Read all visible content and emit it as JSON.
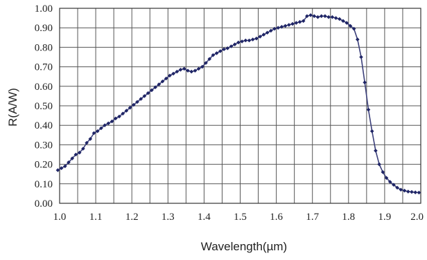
{
  "chart_data": {
    "type": "line",
    "xlabel": "Wavelength(µm)",
    "ylabel": "R(A/W)",
    "xlim": [
      1.0,
      2.0
    ],
    "ylim": [
      0.0,
      1.0
    ],
    "grid": true,
    "x_ticks": [
      "1.0",
      "1.1",
      "1.2",
      "1.3",
      "1.4",
      "1.5",
      "1.6",
      "1.7",
      "1.8",
      "1.9",
      "2.0"
    ],
    "y_ticks": [
      "0.00",
      "0.10",
      "0.20",
      "0.30",
      "0.40",
      "0.50",
      "0.60",
      "0.70",
      "0.80",
      "0.90",
      "1.00"
    ],
    "series": [
      {
        "color": "#1f2566",
        "points": [
          [
            0.995,
            0.17
          ],
          [
            1.005,
            0.18
          ],
          [
            1.015,
            0.19
          ],
          [
            1.025,
            0.21
          ],
          [
            1.035,
            0.23
          ],
          [
            1.045,
            0.25
          ],
          [
            1.055,
            0.26
          ],
          [
            1.065,
            0.28
          ],
          [
            1.075,
            0.31
          ],
          [
            1.085,
            0.33
          ],
          [
            1.095,
            0.36
          ],
          [
            1.105,
            0.37
          ],
          [
            1.115,
            0.385
          ],
          [
            1.125,
            0.4
          ],
          [
            1.135,
            0.41
          ],
          [
            1.145,
            0.42
          ],
          [
            1.155,
            0.435
          ],
          [
            1.165,
            0.445
          ],
          [
            1.175,
            0.46
          ],
          [
            1.185,
            0.475
          ],
          [
            1.195,
            0.49
          ],
          [
            1.205,
            0.505
          ],
          [
            1.215,
            0.52
          ],
          [
            1.225,
            0.535
          ],
          [
            1.235,
            0.55
          ],
          [
            1.245,
            0.565
          ],
          [
            1.255,
            0.58
          ],
          [
            1.265,
            0.595
          ],
          [
            1.275,
            0.61
          ],
          [
            1.285,
            0.625
          ],
          [
            1.295,
            0.64
          ],
          [
            1.305,
            0.655
          ],
          [
            1.315,
            0.665
          ],
          [
            1.325,
            0.675
          ],
          [
            1.335,
            0.685
          ],
          [
            1.345,
            0.69
          ],
          [
            1.355,
            0.68
          ],
          [
            1.365,
            0.675
          ],
          [
            1.375,
            0.68
          ],
          [
            1.385,
            0.69
          ],
          [
            1.395,
            0.7
          ],
          [
            1.405,
            0.72
          ],
          [
            1.415,
            0.74
          ],
          [
            1.425,
            0.76
          ],
          [
            1.435,
            0.77
          ],
          [
            1.445,
            0.78
          ],
          [
            1.455,
            0.79
          ],
          [
            1.465,
            0.795
          ],
          [
            1.475,
            0.805
          ],
          [
            1.485,
            0.815
          ],
          [
            1.495,
            0.825
          ],
          [
            1.505,
            0.83
          ],
          [
            1.515,
            0.835
          ],
          [
            1.525,
            0.835
          ],
          [
            1.535,
            0.84
          ],
          [
            1.545,
            0.845
          ],
          [
            1.555,
            0.855
          ],
          [
            1.565,
            0.865
          ],
          [
            1.575,
            0.875
          ],
          [
            1.585,
            0.885
          ],
          [
            1.595,
            0.895
          ],
          [
            1.605,
            0.9
          ],
          [
            1.615,
            0.905
          ],
          [
            1.625,
            0.91
          ],
          [
            1.635,
            0.915
          ],
          [
            1.645,
            0.92
          ],
          [
            1.655,
            0.925
          ],
          [
            1.665,
            0.93
          ],
          [
            1.675,
            0.935
          ],
          [
            1.685,
            0.96
          ],
          [
            1.695,
            0.965
          ],
          [
            1.705,
            0.96
          ],
          [
            1.715,
            0.955
          ],
          [
            1.725,
            0.96
          ],
          [
            1.735,
            0.96
          ],
          [
            1.745,
            0.955
          ],
          [
            1.755,
            0.955
          ],
          [
            1.765,
            0.95
          ],
          [
            1.775,
            0.945
          ],
          [
            1.785,
            0.935
          ],
          [
            1.795,
            0.925
          ],
          [
            1.805,
            0.91
          ],
          [
            1.815,
            0.895
          ],
          [
            1.825,
            0.84
          ],
          [
            1.835,
            0.75
          ],
          [
            1.845,
            0.62
          ],
          [
            1.855,
            0.48
          ],
          [
            1.865,
            0.37
          ],
          [
            1.875,
            0.27
          ],
          [
            1.885,
            0.2
          ],
          [
            1.895,
            0.16
          ],
          [
            1.905,
            0.13
          ],
          [
            1.915,
            0.11
          ],
          [
            1.925,
            0.095
          ],
          [
            1.935,
            0.08
          ],
          [
            1.945,
            0.07
          ],
          [
            1.955,
            0.065
          ],
          [
            1.965,
            0.06
          ],
          [
            1.975,
            0.058
          ],
          [
            1.985,
            0.056
          ],
          [
            1.995,
            0.055
          ]
        ]
      }
    ]
  }
}
